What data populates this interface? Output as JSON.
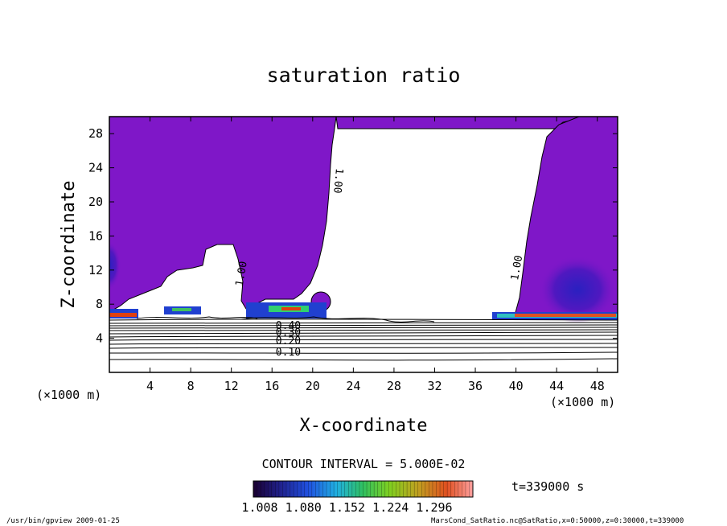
{
  "chart_data": {
    "type": "contour",
    "title": "saturation ratio",
    "xlabel": "X-coordinate",
    "ylabel": "Z-coordinate",
    "x_unit_left": "(×1000 m)",
    "x_unit_right": "(×1000 m)",
    "xlim": [
      0,
      50
    ],
    "ylim": [
      0,
      30
    ],
    "xticks": [
      "4",
      "8",
      "12",
      "16",
      "20",
      "24",
      "28",
      "32",
      "36",
      "40",
      "44",
      "48"
    ],
    "yticks": [
      "4",
      "8",
      "12",
      "16",
      "20",
      "24",
      "28"
    ],
    "contour_labels": [
      {
        "text": "1.00",
        "x": 22.2,
        "y": 22.5,
        "rot": 95
      },
      {
        "text": "1.00",
        "x": 13.3,
        "y": 11.5,
        "rot": -80
      },
      {
        "text": "1.00",
        "x": 40.4,
        "y": 12.2,
        "rot": -80
      },
      {
        "text": "0.40",
        "x": 17.6,
        "y": 5.1,
        "rot": 0
      },
      {
        "text": "0.30",
        "x": 17.6,
        "y": 4.3,
        "rot": 0
      },
      {
        "text": "0.20",
        "x": 17.6,
        "y": 3.3,
        "rot": 0
      },
      {
        "text": "0.10",
        "x": 17.6,
        "y": 2.0,
        "rot": 0
      }
    ],
    "contour_interval_text": "CONTOUR INTERVAL = 5.000E-02",
    "colorbar_labels": [
      "1.008",
      "1.080",
      "1.152",
      "1.224",
      "1.296"
    ],
    "time_text": "t=339000  s",
    "colors": {
      "background_field": "#7f17c8",
      "deep": "#4a18b8"
    }
  },
  "footer": {
    "left": "/usr/bin/gpview   2009-01-25",
    "right": "MarsCond_SatRatio.nc@SatRatio,x=0:50000,z=0:30000,t=339000"
  }
}
